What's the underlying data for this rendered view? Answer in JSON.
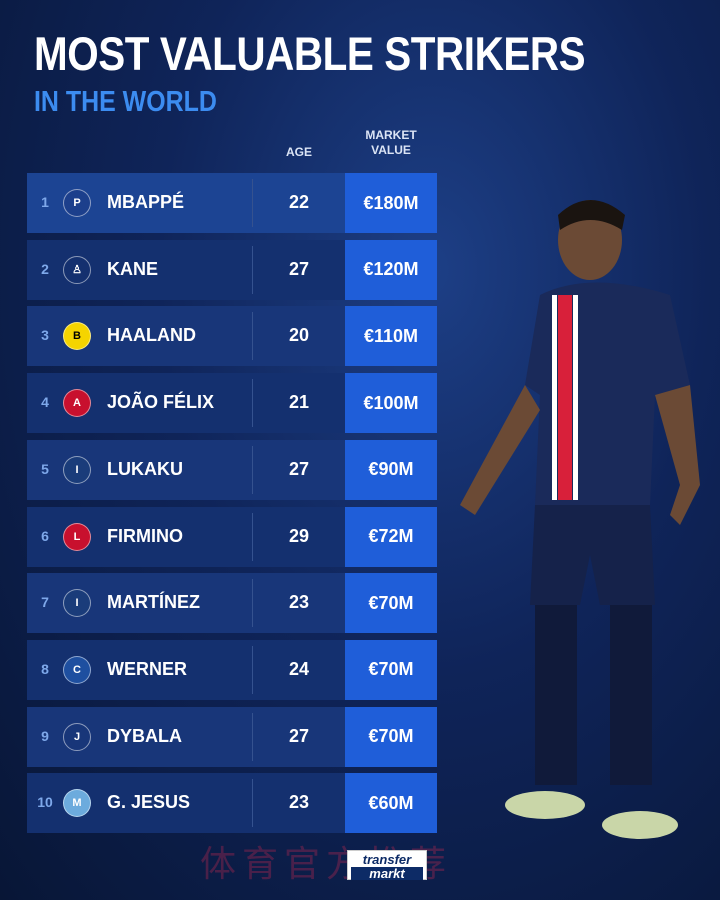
{
  "title": "MOST VALUABLE STRIKERS",
  "subtitle": "IN THE WORLD",
  "headers": {
    "age": "AGE",
    "value_line1": "MARKET",
    "value_line2": "VALUE"
  },
  "colors": {
    "background": "#0f2459",
    "row": "#14306f",
    "value_box": "#1f5ed9",
    "subtitle": "#3c8cf0"
  },
  "rows": [
    {
      "rank": "1",
      "club_icon": "psg-crest",
      "name": "MBAPPÉ",
      "age": "22",
      "value": "€180M"
    },
    {
      "rank": "2",
      "club_icon": "tottenham-crest",
      "name": "KANE",
      "age": "27",
      "value": "€120M"
    },
    {
      "rank": "3",
      "club_icon": "dortmund-crest",
      "name": "HAALAND",
      "age": "20",
      "value": "€110M"
    },
    {
      "rank": "4",
      "club_icon": "atletico-madrid-crest",
      "name": "JOÃO FÉLIX",
      "age": "21",
      "value": "€100M"
    },
    {
      "rank": "5",
      "club_icon": "inter-crest",
      "name": "LUKAKU",
      "age": "27",
      "value": "€90M"
    },
    {
      "rank": "6",
      "club_icon": "liverpool-crest",
      "name": "FIRMINO",
      "age": "29",
      "value": "€72M"
    },
    {
      "rank": "7",
      "club_icon": "inter-crest",
      "name": "MARTÍNEZ",
      "age": "23",
      "value": "€70M"
    },
    {
      "rank": "8",
      "club_icon": "chelsea-crest",
      "name": "WERNER",
      "age": "24",
      "value": "€70M"
    },
    {
      "rank": "9",
      "club_icon": "juventus-crest",
      "name": "DYBALA",
      "age": "27",
      "value": "€70M"
    },
    {
      "rank": "10",
      "club_icon": "man-city-crest",
      "name": "G. JESUS",
      "age": "23",
      "value": "€60M"
    }
  ],
  "logo": {
    "line1": "transfer",
    "line2": "markt"
  },
  "watermark": "体育官方推荐"
}
